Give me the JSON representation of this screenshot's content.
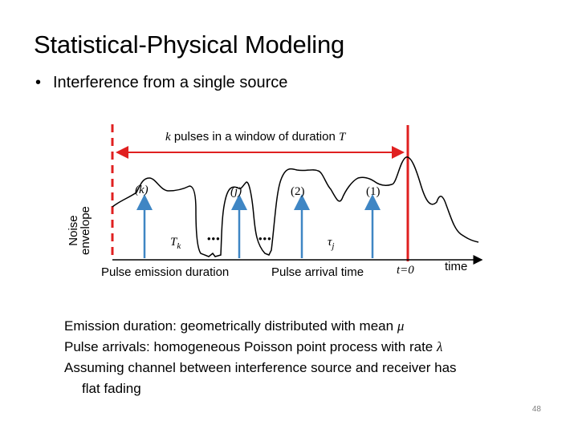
{
  "slide": {
    "title": "Statistical-Physical Modeling",
    "bullet": "Interference from a single source",
    "page_number": "48"
  },
  "figure": {
    "window_label_prefix": "k",
    "window_label_text": "pulses in a window of duration",
    "window_label_suffix": "T",
    "y_axis_label_line1": "Noise",
    "y_axis_label_line2": "envelope",
    "pulse_k": "(k)",
    "pulse_j": "(j)",
    "pulse_2": "(2)",
    "pulse_1": "(1)",
    "T_k": "T",
    "T_k_sub": "k",
    "tau_j": "τ",
    "tau_j_sub": "j",
    "dots_1": "•••",
    "dots_2": "•••",
    "emission_duration_label": "Pulse emission duration",
    "arrival_time_label": "Pulse arrival time",
    "t0_label": "t=0",
    "time_axis_label": "time",
    "colors": {
      "dashed": "#e02020",
      "arrow": "#3f86c4",
      "window_arrow": "#e02020",
      "curve": "#000000"
    }
  },
  "notes": {
    "line1_text": "Emission duration: geometrically distributed with mean",
    "line1_symbol": "μ",
    "line2_text": "Pulse arrivals: homogeneous Poisson point process with rate",
    "line2_symbol": "λ",
    "line3": "Assuming channel between interference source and receiver has",
    "line3_cont": "flat fading"
  }
}
